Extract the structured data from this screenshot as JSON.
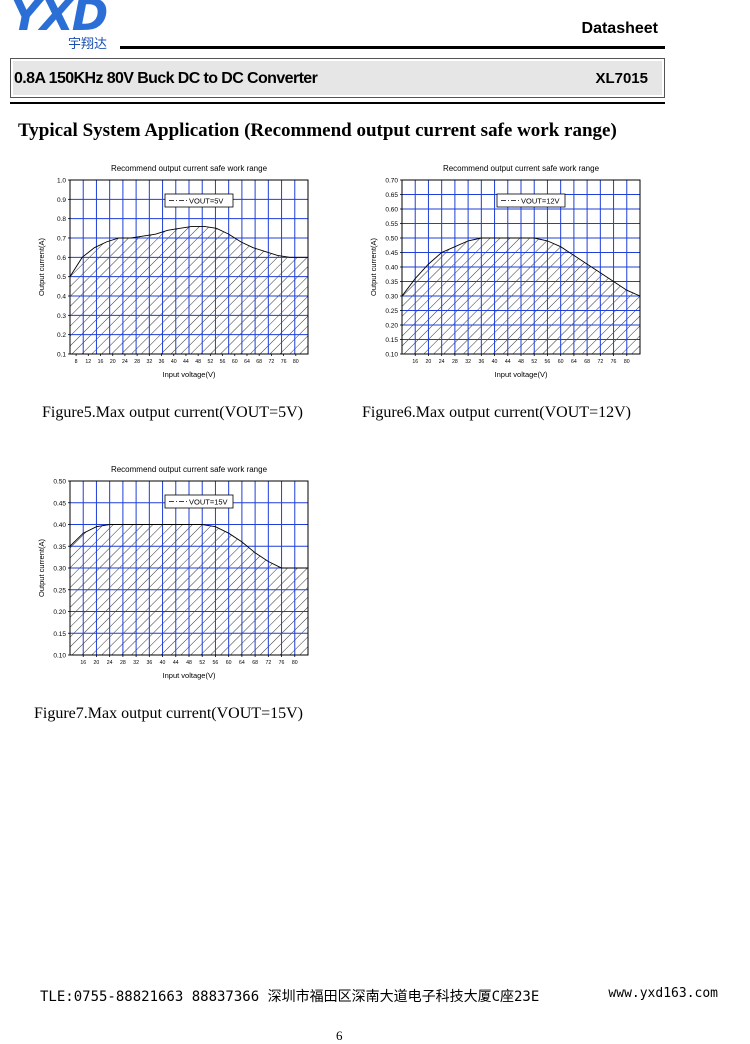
{
  "header": {
    "logo_text": "YXD",
    "logo_sub": "宇翔达",
    "doc_type": "Datasheet",
    "product_title": "0.8A 150KHz 80V Buck DC to DC Converter",
    "part_number": "XL7015"
  },
  "section_heading": "Typical System Application (Recommend output current safe work range)",
  "figures": [
    {
      "caption": "Figure5.Max output current(VOUT=5V)"
    },
    {
      "caption": "Figure6.Max output current(VOUT=12V)"
    },
    {
      "caption": "Figure7.Max output current(VOUT=15V)"
    }
  ],
  "chart_data": [
    {
      "type": "area",
      "title": "Recommend output current safe work range",
      "xlabel": "Input voltage(V)",
      "ylabel": "Output current(A)",
      "legend": "VOUT=5V",
      "legend_position": "top-center",
      "grid": true,
      "xlim": [
        6,
        84
      ],
      "ylim": [
        0.1,
        1.0
      ],
      "xticks": [
        8,
        12,
        16,
        20,
        24,
        28,
        32,
        36,
        40,
        44,
        48,
        52,
        56,
        60,
        64,
        68,
        72,
        76,
        80
      ],
      "yticks": [
        "0.1",
        "0.2",
        "0.3",
        "0.4",
        "0.5",
        "0.6",
        "0.7",
        "0.8",
        "0.9",
        "1.0"
      ],
      "x": [
        6,
        10,
        14,
        18,
        22,
        26,
        30,
        34,
        38,
        42,
        46,
        50,
        54,
        58,
        62,
        66,
        70,
        74,
        78,
        82,
        84
      ],
      "y": [
        0.5,
        0.6,
        0.65,
        0.68,
        0.7,
        0.7,
        0.71,
        0.72,
        0.74,
        0.75,
        0.76,
        0.76,
        0.75,
        0.72,
        0.68,
        0.65,
        0.63,
        0.61,
        0.6,
        0.6,
        0.6
      ]
    },
    {
      "type": "area",
      "title": "Recommend output current safe work range",
      "xlabel": "Input voltage(V)",
      "ylabel": "Output current(A)",
      "legend": "VOUT=12V",
      "legend_position": "top-center",
      "grid": true,
      "xlim": [
        12,
        84
      ],
      "ylim": [
        0.1,
        0.7
      ],
      "xticks": [
        16,
        20,
        24,
        28,
        32,
        36,
        40,
        44,
        48,
        52,
        56,
        60,
        64,
        68,
        72,
        76,
        80
      ],
      "yticks": [
        "0.10",
        "0.15",
        "0.20",
        "0.25",
        "0.30",
        "0.35",
        "0.40",
        "0.45",
        "0.50",
        "0.55",
        "0.60",
        "0.65",
        "0.70"
      ],
      "x": [
        12,
        16,
        20,
        24,
        28,
        32,
        36,
        40,
        44,
        48,
        52,
        56,
        60,
        64,
        68,
        72,
        76,
        80,
        84
      ],
      "y": [
        0.3,
        0.36,
        0.41,
        0.45,
        0.47,
        0.49,
        0.5,
        0.5,
        0.5,
        0.5,
        0.5,
        0.49,
        0.47,
        0.44,
        0.41,
        0.38,
        0.35,
        0.32,
        0.3
      ]
    },
    {
      "type": "area",
      "title": "Recommend output current safe work range",
      "xlabel": "Input voltage(V)",
      "ylabel": "Output current(A)",
      "legend": "VOUT=15V",
      "legend_position": "top-center",
      "grid": true,
      "xlim": [
        12,
        84
      ],
      "ylim": [
        0.1,
        0.5
      ],
      "xticks": [
        16,
        20,
        24,
        28,
        32,
        36,
        40,
        44,
        48,
        52,
        56,
        60,
        64,
        68,
        72,
        76,
        80
      ],
      "yticks": [
        "0.10",
        "0.15",
        "0.20",
        "0.25",
        "0.30",
        "0.35",
        "0.40",
        "0.45",
        "0.50"
      ],
      "x": [
        12,
        16,
        20,
        24,
        28,
        32,
        36,
        40,
        44,
        48,
        52,
        56,
        60,
        64,
        68,
        72,
        76,
        80,
        84
      ],
      "y": [
        0.35,
        0.38,
        0.395,
        0.4,
        0.4,
        0.4,
        0.4,
        0.4,
        0.4,
        0.4,
        0.4,
        0.395,
        0.38,
        0.36,
        0.335,
        0.315,
        0.3,
        0.3,
        0.3
      ]
    }
  ],
  "footer": {
    "contact": "TLE:0755-88821663  88837366   深圳市福田区深南大道电子科技大厦C座23E",
    "website": "www.yxd163.com",
    "page_number": "6"
  }
}
